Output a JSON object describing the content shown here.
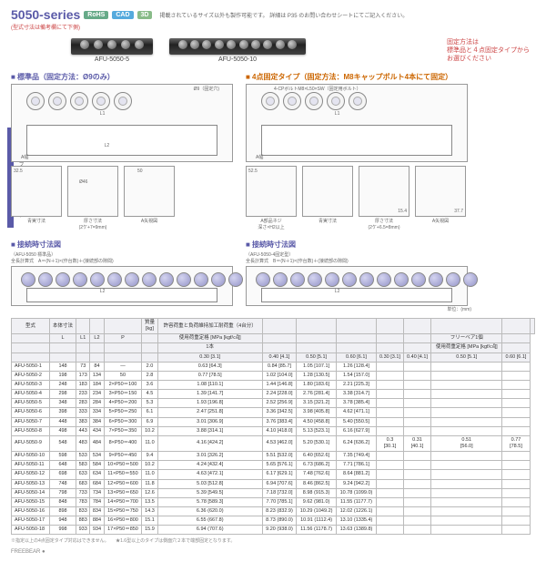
{
  "header": {
    "series": "5050-series",
    "rohs": "RoHS",
    "cad": "CAD",
    "td": "3D",
    "note": "掲載されているサイズ以外も製作可能です。\n詳細は P35 のお問い合わせシートにてご記入ください。",
    "sub": "(型式寸法は備考欄にて下側)"
  },
  "fixnote": "固定方法は\n標準品と４点固定タイプから\nお選びください",
  "sidetxt": "フリーベアフリーベアユニット",
  "photos": [
    {
      "model": "AFU-5050-5",
      "holes": 5
    },
    {
      "model": "AFU-5050-10",
      "holes": 10
    }
  ],
  "sections": {
    "std": "■ 標準品（固定方法：Ø9のみ）",
    "fix4": "■ 4点固定タイプ（固定方法：M8キャップボルト4本にて固定）",
    "fix4note": "4-CPボルトM8×L50×SW（固定用ボルト）",
    "conn": "■ 接続時寸法図",
    "conn_note": "（AFU-5050 標準品）",
    "conn_detail": "全長計算式　A＝(N＋1)×(作台数)＋(接続部の隙間)",
    "conn2": "■ 接続時寸法図",
    "conn2_note": "（AFU-5050-4固定型）",
    "conn2_detail": "全長計算式　B＝(N＋1)×(作台数)＋(接続部の隙間)"
  },
  "smviews": [
    "青実寸法",
    "厚さ寸法\n(2ケ+7=9mm)",
    "A矢視図",
    "A部品ネジ\n深さ×H2以上",
    "青実寸法",
    "厚さ寸法\n(2ケ+6.5=8mm)",
    "A矢視図"
  ],
  "unit": "単位：(mm)",
  "dims": {
    "a": "Ø9（固定穴)",
    "b": "L1",
    "c": "50",
    "d": "A幅",
    "e": "L2",
    "f": "32.5",
    "g": "Ø46",
    "h": "50",
    "i": "Ø9",
    "j": "50",
    "k": "52.5",
    "l": "15.4",
    "m": "37.7"
  },
  "tbl": {
    "h1": [
      "型式",
      "本体寸法",
      "",
      "",
      "",
      "質量\n[kg]",
      "許容荷重と負荷維持加工耐荷重（4台分）",
      "",
      "",
      "",
      "",
      "",
      "",
      "",
      ""
    ],
    "h2": [
      "",
      "L",
      "L1",
      "L2",
      "P",
      "",
      "使用荷重定格 [MPa  [kgf/㎠]]",
      "",
      "",
      "",
      "",
      "",
      "フリーベア1個",
      ""
    ],
    "h3": [
      "",
      "",
      "",
      "",
      "",
      "",
      "1本",
      "",
      "",
      "",
      "",
      "",
      "使用荷重定格 [MPa [kgf/㎠]]",
      ""
    ],
    "h4": [
      "",
      "",
      "",
      "",
      "",
      "",
      "0.30 [3.1]",
      "0.40 [4.1]",
      "0.50 [5.1]",
      "0.60 [6.1]",
      "0.30 [3.1]",
      "0.40 [4.1]",
      "0.50 [5.1]",
      "0.60 [6.1]"
    ],
    "rows": [
      [
        "AFU-5050-1",
        "148",
        "73",
        "84",
        "—",
        "2.0",
        "0.63 [64.3]",
        "0.84 [85.7]",
        "1.05 [107.1]",
        "1.26 [128.4]",
        "",
        "",
        "",
        ""
      ],
      [
        "AFU-5050-2",
        "198",
        "173",
        "134",
        "50",
        "2.8",
        "0.77 [78.5]",
        "1.02 [104.0]",
        "1.28 [130.5]",
        "1.54 [157.0]",
        "",
        "",
        "",
        ""
      ],
      [
        "AFU-5050-3",
        "248",
        "183",
        "184",
        "2×P50＝100",
        "3.6",
        "1.08 [110.1]",
        "1.44 [146.8]",
        "1.80 [183.6]",
        "2.21 [225.3]",
        "",
        "",
        "",
        ""
      ],
      [
        "AFU-5050-4",
        "298",
        "233",
        "234",
        "3×P50＝150",
        "4.5",
        "1.39 [141.7]",
        "2.24 [228.0]",
        "2.76 [281.4]",
        "3.38 [314.7]",
        "",
        "",
        "",
        ""
      ],
      [
        "AFU-5050-5",
        "348",
        "283",
        "284",
        "4×P50＝200",
        "5.3",
        "1.93 [196.8]",
        "2.52 [256.9]",
        "3.15 [321.2]",
        "3.78 [385.4]",
        "",
        "",
        "",
        ""
      ],
      [
        "AFU-5050-6",
        "398",
        "333",
        "334",
        "5×P50＝250",
        "6.1",
        "2.47 [251.8]",
        "3.36 [342.5]",
        "3.98 [405.8]",
        "4.62 [471.1]",
        "",
        "",
        "",
        ""
      ],
      [
        "AFU-5050-7",
        "448",
        "383",
        "384",
        "6×P50＝300",
        "6.9",
        "3.01 [306.9]",
        "3.76 [383.4]",
        "4.50 [458.8]",
        "5.40 [550.5]",
        "",
        "",
        "",
        ""
      ],
      [
        "AFU-5050-8",
        "498",
        "443",
        "434",
        "7×P50＝350",
        "10.2",
        "3.88 [314.1]",
        "4.10 [418.0]",
        "5.13 [523.1]",
        "6.16 [627.9]",
        "",
        "",
        "",
        ""
      ],
      [
        "AFU-5050-9",
        "548",
        "483",
        "484",
        "8×P50＝400",
        "11.0",
        "4.16 [424.2]",
        "4.53 [462.0]",
        "5.20 [530.1]",
        "6.24 [636.2]",
        "0.3\n[30.1]",
        "0.31\n[40.1]",
        "0.51\n[56.0]",
        "0.77\n[78.5]"
      ],
      [
        "AFU-5050-10",
        "598",
        "533",
        "534",
        "9×P50＝450",
        "9.4",
        "3.01 [326.2]",
        "5.51 [532.0]",
        "6.40 [652.6]",
        "7.35 [749.4]",
        "",
        "",
        "",
        ""
      ],
      [
        "AFU-5050-11",
        "648",
        "583",
        "584",
        "10×P50＝500",
        "10.2",
        "4.24 [432.4]",
        "5.65 [576.1]",
        "6.73 [686.2]",
        "7.71 [786.1]",
        "",
        "",
        "",
        ""
      ],
      [
        "AFU-5050-12",
        "698",
        "633",
        "634",
        "11×P50＝550",
        "11.0",
        "4.63 [472.1]",
        "6.17 [629.1]",
        "7.48 [762.6]",
        "8.64 [881.2]",
        "",
        "",
        "",
        ""
      ],
      [
        "AFU-5050-13",
        "748",
        "683",
        "684",
        "12×P50＝600",
        "11.8",
        "5.03 [512.8]",
        "6.94 [707.6]",
        "8.46 [862.5]",
        "9.24 [942.2]",
        "",
        "",
        "",
        ""
      ],
      [
        "AFU-5050-14",
        "798",
        "733",
        "734",
        "13×P50＝650",
        "12.6",
        "5.39 [549.5]",
        "7.18 [732.0]",
        "8.98 (915.3)",
        "10.78 (1099.0)",
        "",
        "",
        "",
        ""
      ],
      [
        "AFU-5050-15",
        "848",
        "783",
        "784",
        "14×P50＝700",
        "13.5",
        "5.78 [589.3]",
        "7.70 [785.1]",
        "9.62 (981.0)",
        "11.55 (1177.7)",
        "",
        "",
        "",
        ""
      ],
      [
        "AFU-5050-16",
        "898",
        "833",
        "834",
        "15×P50＝750",
        "14.3",
        "6.36 (620.0)",
        "8.23 (832.9)",
        "10.29 (1049.2)",
        "12.02 (1226.1)",
        "",
        "",
        "",
        ""
      ],
      [
        "AFU-5050-17",
        "948",
        "883",
        "884",
        "16×P50＝800",
        "15.1",
        "6.55 (667.8)",
        "8.73 (890.0)",
        "10.91 (1112.4)",
        "13.10 (1335.4)",
        "",
        "",
        "",
        ""
      ],
      [
        "AFU-5050-18",
        "998",
        "933",
        "934",
        "17×P50＝850",
        "15.9",
        "6.94 (707.6)",
        "9.20 (938.0)",
        "11.56 (1178.7)",
        "13.63 (1389.8)",
        "",
        "",
        "",
        ""
      ]
    ],
    "foot": "※指定以上の4点固定タイプ対応はできません。　　★1.6型以上のタイプは側面穴２本で端部固定となります。",
    "pageno": "FREEBEAR ●"
  }
}
